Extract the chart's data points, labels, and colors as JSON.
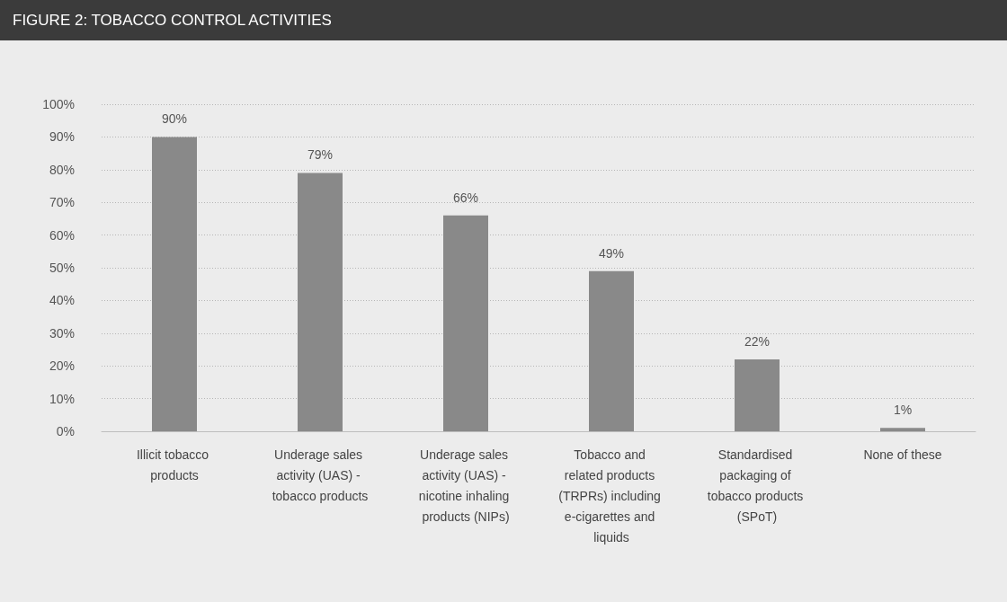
{
  "chart_data": {
    "type": "bar",
    "title": "FIGURE 2: TOBACCO CONTROL ACTIVITIES",
    "categories": [
      "Illicit tobacco products",
      "Underage sales activity (UAS) - tobacco products",
      "Underage sales activity (UAS) - nicotine inhaling products (NIPs)",
      "Tobacco and related products (TRPRs) including e-cigarettes and liquids",
      "Standardised packaging of tobacco products (SPoT)",
      "None of these"
    ],
    "values": [
      90,
      79,
      66,
      49,
      22,
      1
    ],
    "value_labels": [
      "90%",
      "79%",
      "66%",
      "49%",
      "22%",
      "1%"
    ],
    "color": "#898989",
    "ylim": [
      0,
      100
    ],
    "yticks": [
      {
        "value": 0,
        "label": "0%"
      },
      {
        "value": 10,
        "label": "10%"
      },
      {
        "value": 20,
        "label": "20%"
      },
      {
        "value": 30,
        "label": "30%"
      },
      {
        "value": 40,
        "label": "40%"
      },
      {
        "value": 50,
        "label": "50%"
      },
      {
        "value": 60,
        "label": "60%"
      },
      {
        "value": 70,
        "label": "70%"
      },
      {
        "value": 80,
        "label": "80%"
      },
      {
        "value": 90,
        "label": "90%"
      },
      {
        "value": 100,
        "label": "100%"
      }
    ],
    "grid": "y"
  }
}
